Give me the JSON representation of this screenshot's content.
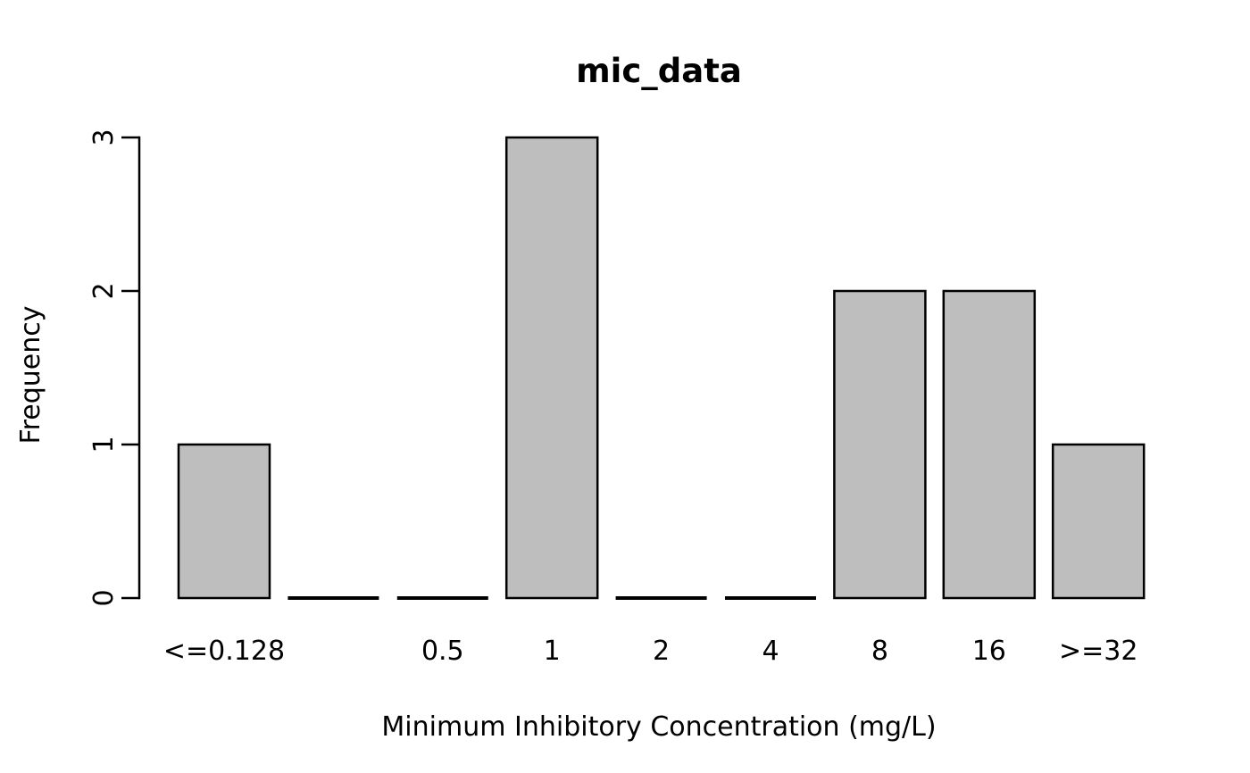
{
  "chart_data": {
    "type": "bar",
    "title": "mic_data",
    "xlabel": "Minimum Inhibitory Concentration (mg/L)",
    "ylabel": "Frequency",
    "categories": [
      "<=0.128",
      "",
      "0.5",
      "1",
      "2",
      "4",
      "8",
      "16",
      ">=32"
    ],
    "values": [
      1,
      0,
      0,
      3,
      0,
      0,
      2,
      2,
      1
    ],
    "yticks": [
      "0",
      "1",
      "2",
      "3"
    ],
    "ylim": [
      0,
      3
    ],
    "bar_fill": "#bebebe",
    "bar_stroke": "#000000",
    "axis_color": "#000000",
    "background": "#ffffff",
    "grid": false,
    "legend": "none"
  }
}
